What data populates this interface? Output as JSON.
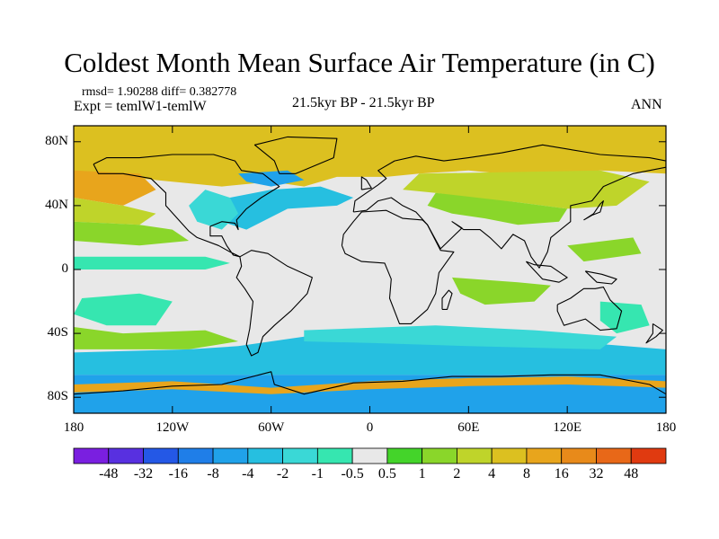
{
  "title": "Coldest Month Mean Surface Air Temperature (in C)",
  "stats": {
    "rmsd_text": "rmsd= 1.90288 diff= 0.382778"
  },
  "experiment": "Expt = temlW1-temlW",
  "period": "21.5kyr BP - 21.5kyr BP",
  "season": "ANN",
  "axes": {
    "lat_ticks": [
      {
        "value": 80,
        "label": "80N"
      },
      {
        "value": 40,
        "label": "40N"
      },
      {
        "value": 0,
        "label": "0"
      },
      {
        "value": -40,
        "label": "40S"
      },
      {
        "value": -80,
        "label": "80S"
      }
    ],
    "lon_ticks": [
      {
        "value": -180,
        "label": "180"
      },
      {
        "value": -120,
        "label": "120W"
      },
      {
        "value": -60,
        "label": "60W"
      },
      {
        "value": 0,
        "label": "0"
      },
      {
        "value": 60,
        "label": "60E"
      },
      {
        "value": 120,
        "label": "120E"
      },
      {
        "value": 180,
        "label": "180"
      }
    ],
    "lat_range": [
      -90,
      90
    ],
    "lon_range": [
      -180,
      180
    ]
  },
  "colorbar": {
    "colors": [
      "#7a1fe0",
      "#5830e0",
      "#2458e6",
      "#1f7ee8",
      "#20a2ea",
      "#26bfe0",
      "#3ad8d6",
      "#36e6b0",
      "#e8e8e8",
      "#44d42a",
      "#8ad62a",
      "#bfd42a",
      "#dcc020",
      "#e8a51c",
      "#e88a1a",
      "#e86818",
      "#e03a10"
    ],
    "labels": [
      "-48",
      "-32",
      "-16",
      "-8",
      "-4",
      "-2",
      "-1",
      "-0.5",
      "0.5",
      "1",
      "2",
      "4",
      "8",
      "16",
      "32",
      "48"
    ]
  },
  "field_colors": {
    "neutral": "#e8e8e8",
    "warm_light": "#8ad62a",
    "warm_green": "#44d42a",
    "warm_yellow": "#bfd42a",
    "warm_gold": "#dcc020",
    "warm_orange": "#e8a51c",
    "cool_mint": "#36e6b0",
    "cool_teal": "#3ad8d6",
    "cool_cyan": "#26bfe0",
    "cool_blue": "#20a2ea"
  }
}
